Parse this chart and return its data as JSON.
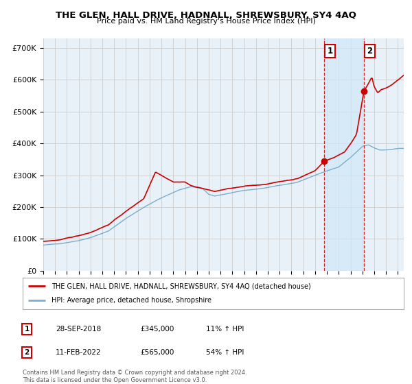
{
  "title": "THE GLEN, HALL DRIVE, HADNALL, SHREWSBURY, SY4 4AQ",
  "subtitle": "Price paid vs. HM Land Registry's House Price Index (HPI)",
  "ylabel_ticks": [
    "£0",
    "£100K",
    "£200K",
    "£300K",
    "£400K",
    "£500K",
    "£600K",
    "£700K"
  ],
  "ytick_vals": [
    0,
    100000,
    200000,
    300000,
    400000,
    500000,
    600000,
    700000
  ],
  "ylim": [
    0,
    730000
  ],
  "xlim_start": 1995.0,
  "xlim_end": 2025.5,
  "sale1_x": 2018.75,
  "sale1_y": 345000,
  "sale1_label": "1",
  "sale2_x": 2022.12,
  "sale2_y": 565000,
  "sale2_label": "2",
  "legend_line1": "THE GLEN, HALL DRIVE, HADNALL, SHREWSBURY, SY4 4AQ (detached house)",
  "legend_line2": "HPI: Average price, detached house, Shropshire",
  "table_rows": [
    [
      "1",
      "28-SEP-2018",
      "£345,000",
      "11% ↑ HPI"
    ],
    [
      "2",
      "11-FEB-2022",
      "£565,000",
      "54% ↑ HPI"
    ]
  ],
  "footnote": "Contains HM Land Registry data © Crown copyright and database right 2024.\nThis data is licensed under the Open Government Licence v3.0.",
  "red_color": "#cc0000",
  "blue_color": "#7aadcf",
  "shade_color": "#d0e8f8",
  "grid_color": "#cccccc",
  "plot_bg": "#e8f0f8"
}
